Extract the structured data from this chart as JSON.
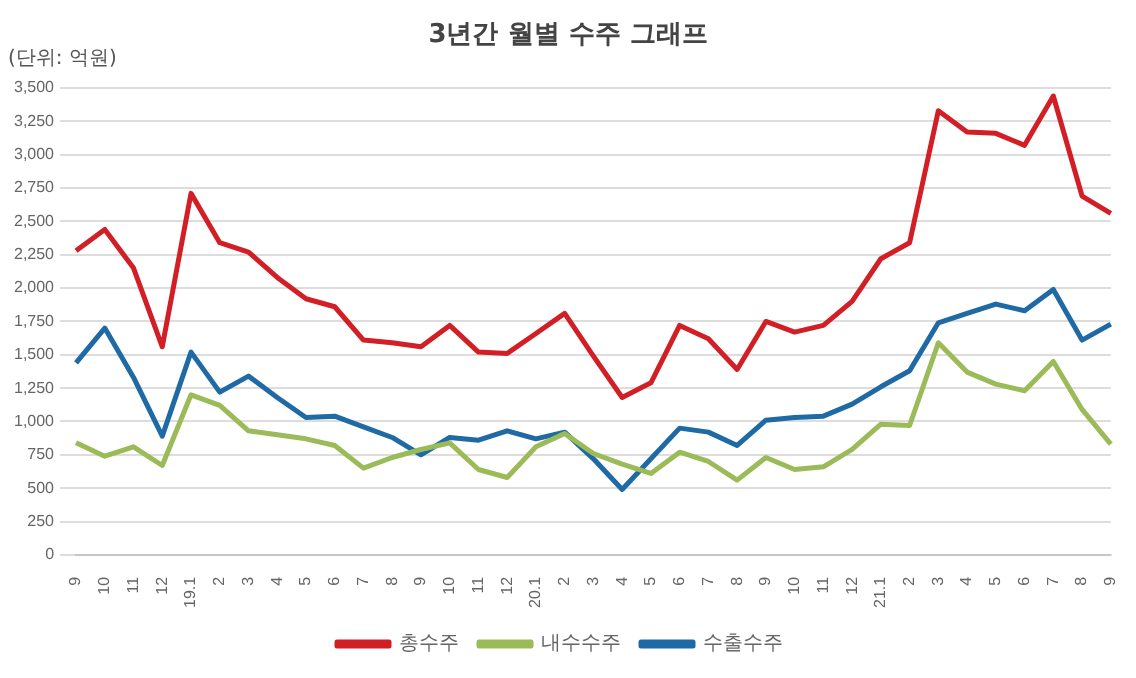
{
  "chart_data": {
    "type": "line",
    "title": "3년간 월별 수주 그래프",
    "annotations": [
      "(단위: 억원)"
    ],
    "categories": [
      "9",
      "10",
      "11",
      "12",
      "19.1",
      "2",
      "3",
      "4",
      "5",
      "6",
      "7",
      "8",
      "9",
      "10",
      "11",
      "12",
      "20.1",
      "2",
      "3",
      "4",
      "5",
      "6",
      "7",
      "8",
      "9",
      "10",
      "11",
      "12",
      "21.1",
      "2",
      "3",
      "4",
      "5",
      "6",
      "7",
      "8",
      "9"
    ],
    "series": [
      {
        "name": "총수주",
        "color": "#d21f26",
        "values": [
          2280,
          2440,
          2150,
          1560,
          2710,
          2340,
          2270,
          2080,
          1920,
          1860,
          1610,
          1590,
          1560,
          1720,
          1520,
          1510,
          1660,
          1810,
          1490,
          1180,
          1290,
          1720,
          1620,
          1390,
          1750,
          1670,
          1720,
          1900,
          2220,
          2340,
          3330,
          3170,
          3160,
          3070,
          3440,
          2690,
          2560
        ]
      },
      {
        "name": "내수수주",
        "color": "#9bbb59",
        "values": [
          840,
          740,
          810,
          670,
          1200,
          1120,
          930,
          900,
          870,
          820,
          650,
          730,
          790,
          840,
          640,
          580,
          810,
          910,
          760,
          680,
          610,
          770,
          700,
          560,
          730,
          640,
          660,
          790,
          980,
          970,
          1590,
          1370,
          1280,
          1230,
          1450,
          1090,
          830
        ]
      },
      {
        "name": "수출수주",
        "color": "#1f6aa5",
        "values": [
          1440,
          1700,
          1330,
          890,
          1520,
          1220,
          1340,
          1180,
          1030,
          1040,
          960,
          880,
          750,
          880,
          860,
          930,
          870,
          920,
          720,
          490,
          720,
          950,
          920,
          820,
          1010,
          1030,
          1040,
          1130,
          1260,
          1380,
          1740,
          1810,
          1880,
          1830,
          1990,
          1610,
          1730
        ]
      }
    ],
    "ylim": [
      0,
      3500
    ],
    "yticks": [
      0,
      250,
      500,
      750,
      {
        "value": 1000,
        "label": "1,000"
      },
      {
        "value": 1250,
        "label": "1,250"
      },
      {
        "value": 1500,
        "label": "1,500"
      },
      {
        "value": 1750,
        "label": "1,750"
      },
      {
        "value": 2000,
        "label": "2,000"
      },
      {
        "value": 2250,
        "label": "2,250"
      },
      {
        "value": 2500,
        "label": "2,500"
      },
      {
        "value": 2750,
        "label": "2,750"
      },
      {
        "value": 3000,
        "label": "3,000"
      },
      {
        "value": 3250,
        "label": "3,250"
      },
      {
        "value": 3500,
        "label": "3,500"
      }
    ],
    "grid": "y",
    "legend": "bottom",
    "marker": "none",
    "line_style": "solid"
  }
}
